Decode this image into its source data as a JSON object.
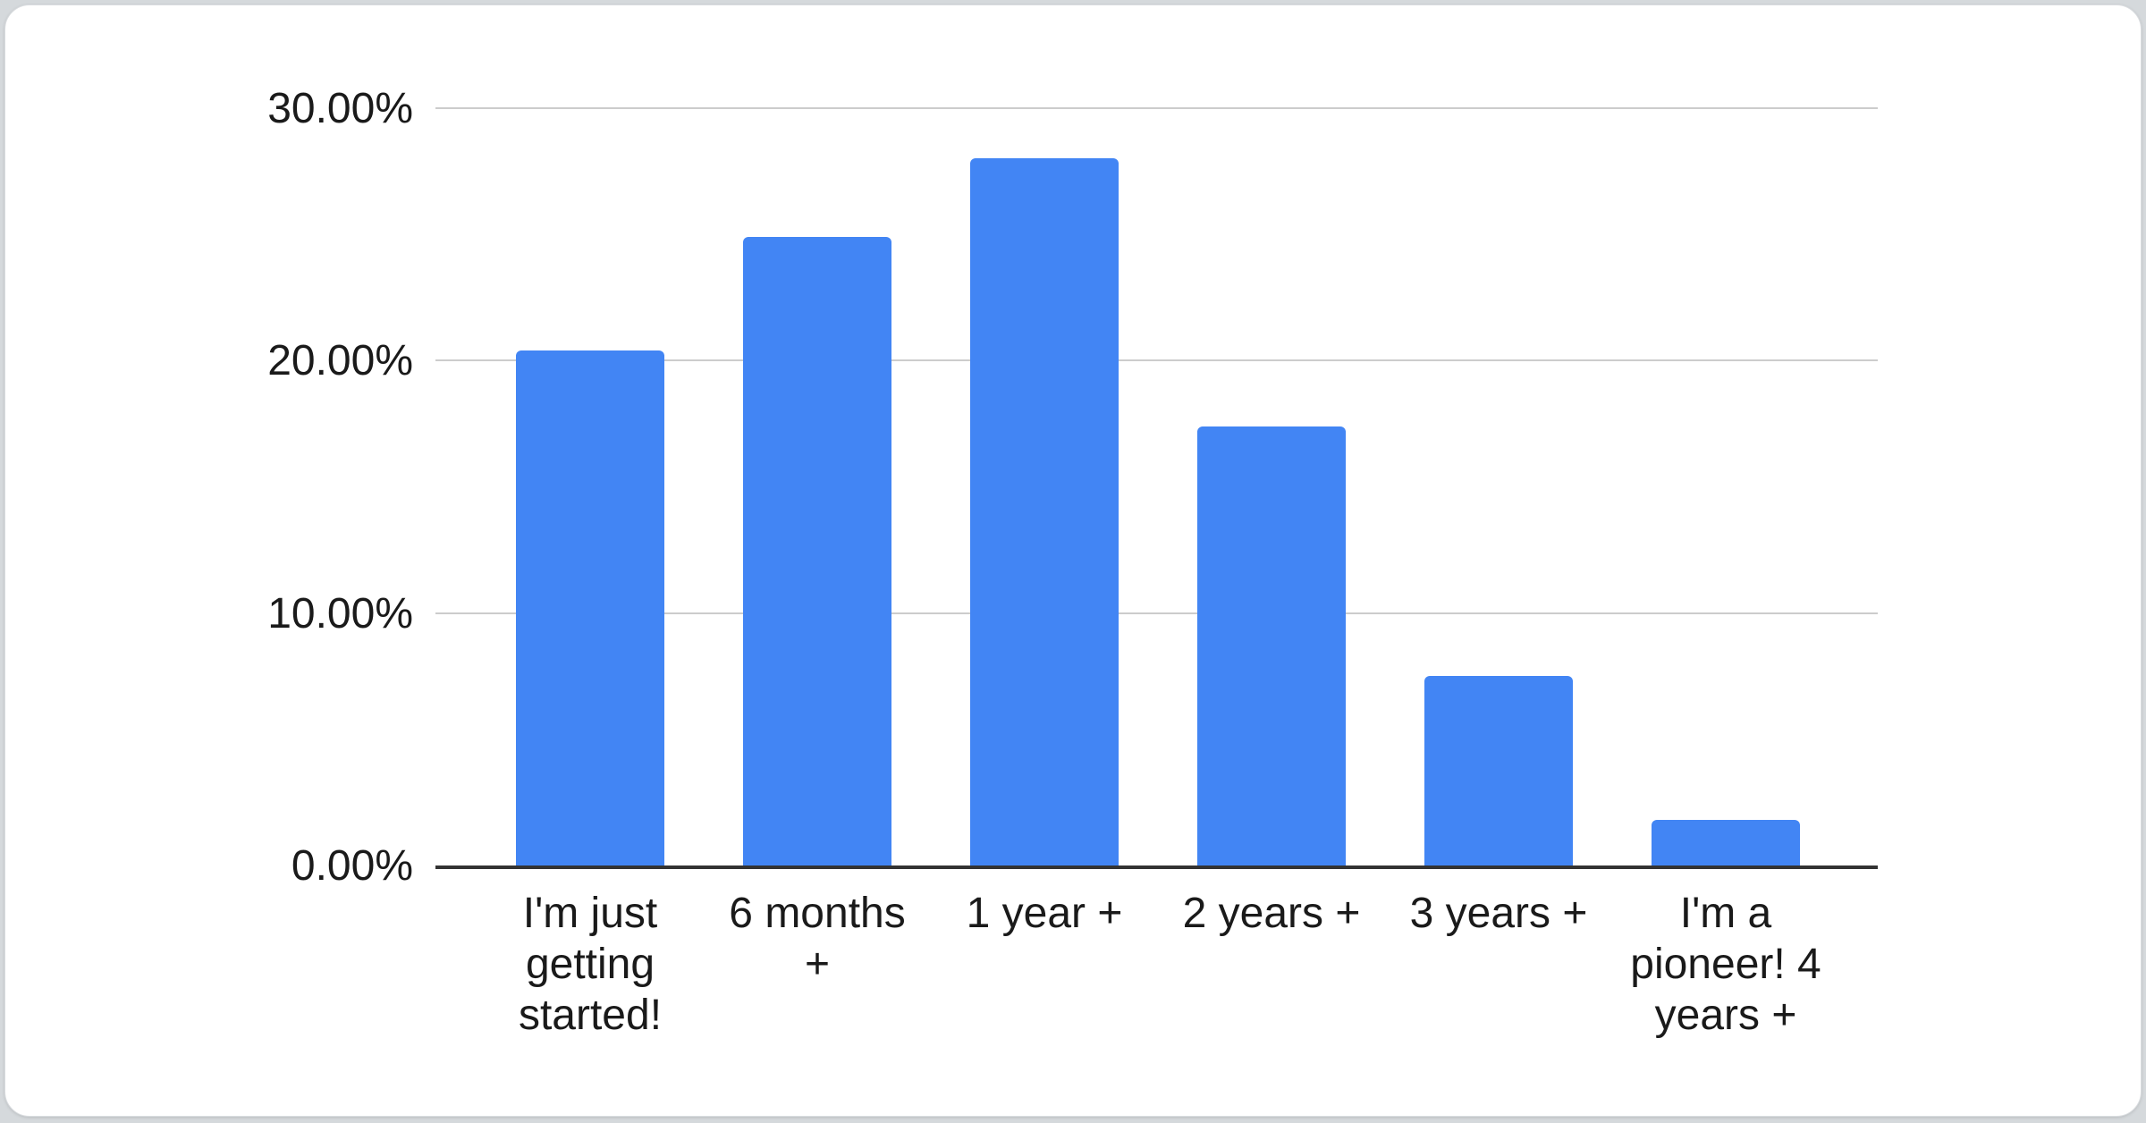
{
  "page": {
    "background_color": "#d5d9dc",
    "card_background_color": "#ffffff"
  },
  "chart_data": {
    "type": "bar",
    "title": "",
    "categories": [
      "I'm just getting started!",
      "6 months +",
      "1 year +",
      "2 years +",
      "3 years +",
      "I'm a pioneer! 4 years +"
    ],
    "values": [
      20.4,
      24.9,
      28.0,
      17.4,
      7.5,
      1.8
    ],
    "unit": "%",
    "xlabel": "",
    "ylabel": "",
    "ylim": [
      0,
      30
    ],
    "y_ticks": [
      {
        "value": 0,
        "label": "0.00%"
      },
      {
        "value": 10,
        "label": "10.00%"
      },
      {
        "value": 20,
        "label": "20.00%"
      },
      {
        "value": 30,
        "label": "30.00%"
      }
    ],
    "grid": true,
    "legend_position": "none",
    "bar_color": "#4285f4",
    "gridline_color": "#cccccc",
    "baseline_color": "#333333",
    "text_color": "#1a1a1a"
  }
}
